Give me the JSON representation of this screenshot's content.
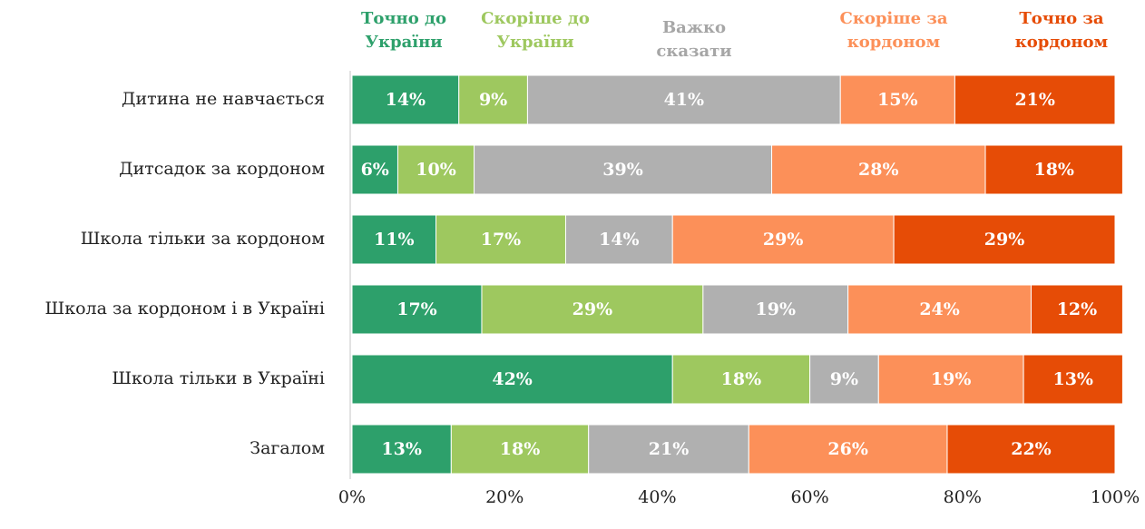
{
  "chart_data": {
    "type": "stacked-bar-horizontal",
    "categories": [
      "Дитина не навчається",
      "Дитсадок за кордоном",
      "Школа тільки за кордоном",
      "Школа за кордоном і в Україні",
      "Школа тільки в Україні",
      "Загалом"
    ],
    "series": [
      {
        "name": "Точно до України",
        "color": "#2da06b",
        "values": [
          14,
          6,
          11,
          17,
          42,
          13
        ],
        "value_labels": [
          "14%",
          "6%",
          "11%",
          "17%",
          "42%",
          "13%"
        ]
      },
      {
        "name": "Скоріше до України",
        "color": "#9ec85f",
        "values": [
          9,
          10,
          17,
          29,
          18,
          18
        ],
        "value_labels": [
          "9%",
          "10%",
          "17%",
          "29%",
          "18%",
          "18%"
        ]
      },
      {
        "name": "Важко сказати",
        "color": "#b0b0b0",
        "values": [
          41,
          39,
          14,
          19,
          9,
          21
        ],
        "value_labels": [
          "41%",
          "39%",
          "14%",
          "19%",
          "9%",
          "21%"
        ]
      },
      {
        "name": "Скоріше за кордоном",
        "color": "#fc9059",
        "values": [
          15,
          28,
          29,
          24,
          19,
          26
        ],
        "value_labels": [
          "15%",
          "28%",
          "29%",
          "24%",
          "19%",
          "26%"
        ]
      },
      {
        "name": "Точно за кордоном",
        "color": "#e64c06",
        "values": [
          21,
          18,
          29,
          12,
          13,
          22
        ],
        "value_labels": [
          "21%",
          "18%",
          "29%",
          "12%",
          "13%",
          "22%"
        ]
      }
    ],
    "xlim": [
      0,
      100
    ],
    "xticks": [
      {
        "value": 0,
        "label": "0%"
      },
      {
        "value": 20,
        "label": "20%"
      },
      {
        "value": 40,
        "label": "40%"
      },
      {
        "value": 60,
        "label": "60%"
      },
      {
        "value": 80,
        "label": "80%"
      },
      {
        "value": 100,
        "label": "100%"
      }
    ]
  }
}
